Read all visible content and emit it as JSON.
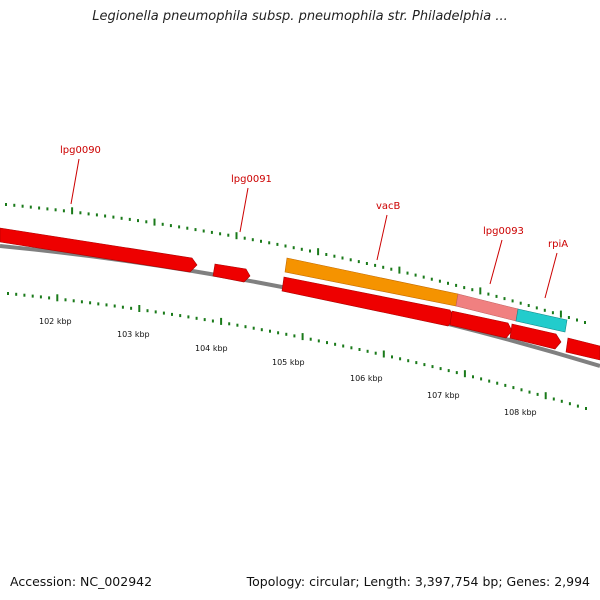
{
  "title": "Legionella pneumophila subsp. pneumophila str. Philadelphia ...",
  "footer": {
    "accession": "Accession: NC_002942",
    "summary": "Topology: circular; Length: 3,397,754 bp; Genes: 2,994"
  },
  "colors": {
    "gene_red": "#ee0000",
    "gene_orange": "#f59300",
    "gene_pink": "#f08080",
    "gene_cyan": "#22cccc",
    "backbone": "#808080",
    "tick_green": "#1a7a1a",
    "label_red": "#cc0000"
  },
  "gene_labels": [
    "lpg0090",
    "lpg0091",
    "vacB",
    "lpg0093",
    "rpiA"
  ],
  "kbp_labels": [
    "102 kbp",
    "103 kbp",
    "104 kbp",
    "105 kbp",
    "106 kbp",
    "107 kbp",
    "108 kbp"
  ]
}
